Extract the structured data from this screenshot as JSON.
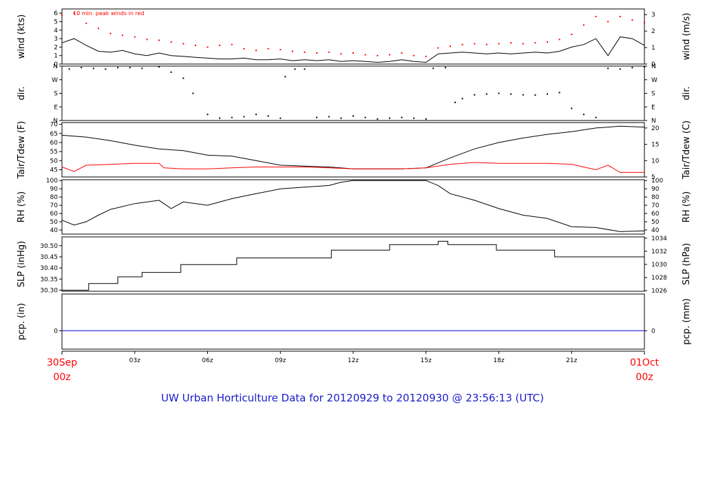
{
  "colors": {
    "ink": "#000000",
    "red": "#ff0000",
    "blue": "#1a1acc",
    "zero_line": "#0000cc"
  },
  "annotation": "10 min. peak winds in red",
  "footer_title": "UW Urban Horticulture Data for 20120929  to  20120930 @ 23:56:13  (UTC)",
  "time_axis": {
    "start_label": [
      "30Sep",
      "00z"
    ],
    "end_label": [
      "01Oct",
      "00z"
    ],
    "hour_labels": [
      "03z",
      "06z",
      "09z",
      "12z",
      "15z",
      "18z",
      "21z"
    ],
    "hours": [
      3,
      6,
      9,
      12,
      15,
      18,
      21
    ],
    "range_hours": [
      0,
      24
    ]
  },
  "panels": [
    {
      "id": "wind",
      "left_title": "wind (kts)",
      "right_title": "wind (m/s)",
      "left_ticks": [
        "0",
        "1",
        "2",
        "3",
        "4",
        "5",
        "6"
      ],
      "left_tick_values": [
        0,
        1,
        2,
        3,
        4,
        5,
        6
      ],
      "left_range": [
        0,
        6.5
      ],
      "right_ticks": [
        "0",
        "1",
        "2",
        "3"
      ],
      "right_tick_values": [
        0,
        1,
        2,
        3
      ]
    },
    {
      "id": "dir",
      "left_title": "dir.",
      "right_title": "dir.",
      "left_ticks": [
        "N",
        "E",
        "S",
        "W",
        "N"
      ],
      "left_tick_values": [
        0,
        90,
        180,
        270,
        360
      ],
      "left_range": [
        0,
        360
      ],
      "right_ticks": [
        "N",
        "E",
        "S",
        "W",
        "N"
      ],
      "right_tick_values": [
        0,
        90,
        180,
        270,
        360
      ]
    },
    {
      "id": "temp",
      "left_title": "Tair/Tdew (F)",
      "right_title": "Tair/Tdew (C)",
      "left_ticks": [
        "45",
        "50",
        "55",
        "60",
        "65",
        "70"
      ],
      "left_tick_values": [
        45,
        50,
        55,
        60,
        65,
        70
      ],
      "left_range": [
        41,
        71
      ],
      "right_ticks": [
        "5",
        "10",
        "15",
        "20"
      ],
      "right_tick_values": [
        5,
        10,
        15,
        20
      ]
    },
    {
      "id": "rh",
      "left_title": "RH (%)",
      "right_title": "RH (%)",
      "left_ticks": [
        "40",
        "50",
        "60",
        "70",
        "80",
        "90",
        "100"
      ],
      "left_tick_values": [
        40,
        50,
        60,
        70,
        80,
        90,
        100
      ],
      "left_range": [
        35,
        101
      ],
      "right_ticks": [
        "40",
        "50",
        "60",
        "70",
        "80",
        "90",
        "100"
      ],
      "right_tick_values": [
        40,
        50,
        60,
        70,
        80,
        90,
        100
      ]
    },
    {
      "id": "slp",
      "left_title": "SLP (inHg)",
      "right_title": "SLP (hPa)",
      "left_ticks": [
        "30.30",
        "30.35",
        "30.40",
        "30.45",
        "30.50"
      ],
      "left_tick_values": [
        30.3,
        30.35,
        30.4,
        30.45,
        30.5
      ],
      "left_range": [
        30.295,
        30.54
      ],
      "right_ticks": [
        "1026",
        "1028",
        "1030",
        "1032",
        "1034"
      ],
      "right_tick_values": [
        1026,
        1028,
        1030,
        1032,
        1034
      ]
    },
    {
      "id": "pcp",
      "left_title": "pcp. (in)",
      "right_title": "pcp. (mm)",
      "left_ticks": [
        "0"
      ],
      "left_tick_values": [
        0
      ],
      "left_range": [
        -0.5,
        1
      ],
      "right_ticks": [
        "0"
      ],
      "right_tick_values": [
        0
      ]
    }
  ],
  "chart_data": {
    "type": "line",
    "x_units": "hours UTC since 30Sep 00z",
    "series": [
      {
        "panel": "wind",
        "style": "line",
        "color": "#000000",
        "x": [
          0,
          0.5,
          1,
          1.5,
          2,
          2.5,
          3,
          3.5,
          4,
          4.5,
          5,
          5.5,
          6,
          6.5,
          7,
          7.5,
          8,
          8.5,
          9,
          9.5,
          10,
          10.5,
          11,
          11.5,
          12,
          12.5,
          13,
          13.5,
          14,
          14.5,
          15,
          15.5,
          16,
          16.5,
          17,
          17.5,
          18,
          18.5,
          19,
          19.5,
          20,
          20.5,
          21,
          21.5,
          22,
          22.5,
          23,
          23.5,
          24
        ],
        "values": [
          2.5,
          3.0,
          2.2,
          1.5,
          1.4,
          1.6,
          1.2,
          1.0,
          1.3,
          1.0,
          0.9,
          0.8,
          0.7,
          0.6,
          0.6,
          0.7,
          0.5,
          0.5,
          0.6,
          0.4,
          0.5,
          0.4,
          0.5,
          0.3,
          0.4,
          0.3,
          0.2,
          0.3,
          0.5,
          0.3,
          0.2,
          1.2,
          1.3,
          1.4,
          1.3,
          1.2,
          1.3,
          1.2,
          1.3,
          1.4,
          1.3,
          1.5,
          2.0,
          2.3,
          3.0,
          1.0,
          3.2,
          3.0,
          2.2
        ]
      },
      {
        "panel": "wind",
        "style": "points",
        "color": "#ff0000",
        "x": [
          0,
          0.5,
          1,
          1.5,
          2,
          2.5,
          3,
          3.5,
          4,
          4.5,
          5,
          5.5,
          6,
          6.5,
          7,
          7.5,
          8,
          8.5,
          9,
          9.5,
          10,
          10.5,
          11,
          11.5,
          12,
          12.5,
          13,
          13.5,
          14,
          14.5,
          15,
          15.5,
          16,
          16.5,
          17,
          17.5,
          18,
          18.5,
          19,
          19.5,
          20,
          20.5,
          21,
          21.5,
          22,
          22.5,
          23,
          23.5,
          24
        ],
        "values": [
          5.8,
          6.0,
          4.8,
          4.2,
          3.6,
          3.4,
          3.2,
          2.9,
          2.8,
          2.6,
          2.4,
          2.2,
          2.0,
          2.2,
          2.3,
          1.8,
          1.6,
          1.8,
          1.7,
          1.5,
          1.4,
          1.3,
          1.4,
          1.2,
          1.3,
          1.1,
          1.0,
          1.1,
          1.3,
          1.0,
          0.9,
          1.9,
          2.1,
          2.3,
          2.4,
          2.3,
          2.4,
          2.5,
          2.4,
          2.5,
          2.6,
          2.9,
          3.5,
          4.6,
          5.6,
          5.0,
          5.6,
          5.2,
          4.9
        ]
      },
      {
        "panel": "dir",
        "style": "points",
        "color": "#000000",
        "x": [
          0.3,
          0.8,
          1.3,
          1.8,
          2.3,
          2.8,
          3.3,
          4.0,
          4.5,
          5.0,
          5.4,
          6.0,
          6.5,
          7.0,
          7.5,
          8.0,
          8.5,
          9.0,
          9.2,
          9.6,
          10.0,
          10.5,
          11.0,
          11.5,
          12.0,
          12.5,
          13.0,
          13.5,
          14.0,
          14.5,
          15.0,
          15.3,
          15.8,
          16.2,
          16.5,
          17.0,
          17.5,
          18.0,
          18.5,
          19.0,
          19.5,
          20.0,
          20.5,
          21.0,
          21.5,
          22.0,
          22.5,
          23.0,
          23.5,
          24.0
        ],
        "values": [
          340,
          350,
          345,
          340,
          350,
          350,
          345,
          355,
          320,
          280,
          180,
          40,
          15,
          20,
          25,
          40,
          30,
          15,
          290,
          340,
          340,
          20,
          25,
          15,
          30,
          20,
          10,
          15,
          20,
          15,
          10,
          345,
          350,
          120,
          145,
          170,
          175,
          180,
          175,
          170,
          168,
          175,
          185,
          80,
          40,
          20,
          345,
          340,
          350,
          355
        ]
      },
      {
        "panel": "temp",
        "name": "Tair",
        "style": "line",
        "color": "#000000",
        "x": [
          0,
          1,
          2,
          3,
          4,
          5,
          6,
          7,
          8,
          9,
          10,
          11,
          12,
          13,
          14,
          15,
          16,
          17,
          18,
          19,
          20,
          21,
          22,
          23,
          24
        ],
        "values": [
          64,
          63,
          61,
          58.5,
          56.5,
          55.5,
          53,
          52.5,
          50,
          47.5,
          47,
          46.5,
          45.5,
          45.5,
          45.5,
          46,
          51.5,
          56.5,
          60,
          62.5,
          64.5,
          66,
          68,
          69,
          68.5
        ]
      },
      {
        "panel": "temp",
        "name": "Tdew",
        "style": "line",
        "color": "#ff0000",
        "x": [
          0,
          0.5,
          1,
          2,
          3,
          4,
          4.2,
          5,
          6,
          7,
          8,
          9,
          10,
          11,
          12,
          13,
          14,
          15,
          16,
          17,
          18,
          19,
          20,
          21,
          22,
          22.5,
          23,
          24
        ],
        "values": [
          46.5,
          44,
          47.5,
          48,
          48.5,
          48.5,
          46,
          45.5,
          45.5,
          46,
          46.5,
          46.5,
          46.5,
          46,
          45.5,
          45.5,
          45.5,
          46,
          48,
          49,
          48.5,
          48.5,
          48.5,
          48,
          45,
          47.5,
          43.5,
          43.5
        ]
      },
      {
        "panel": "rh",
        "style": "line",
        "color": "#000000",
        "x": [
          0,
          0.5,
          1,
          1.5,
          2,
          3,
          4,
          4.5,
          5,
          6,
          7,
          8,
          9,
          10,
          11,
          11.5,
          12,
          13,
          14,
          15,
          15.5,
          16,
          17,
          18,
          19,
          20,
          21,
          22,
          23,
          24
        ],
        "values": [
          52,
          46,
          50,
          58,
          65,
          72,
          76,
          66,
          74,
          70,
          78,
          84,
          90,
          92,
          94,
          98,
          100,
          100,
          100,
          100,
          94,
          84,
          76,
          66,
          58,
          54,
          44,
          43,
          38,
          39
        ]
      },
      {
        "panel": "slp",
        "style": "step",
        "color": "#000000",
        "x": [
          0,
          1.1,
          2.3,
          3.3,
          4.9,
          7.2,
          11.1,
          13.5,
          15.5,
          15.9,
          17.9,
          20.3,
          24
        ],
        "values": [
          30.3,
          30.33,
          30.36,
          30.38,
          30.415,
          30.445,
          30.48,
          30.505,
          30.52,
          30.505,
          30.48,
          30.45,
          30.45
        ]
      },
      {
        "panel": "pcp",
        "style": "line",
        "color": "#0000cc",
        "x": [
          0,
          24
        ],
        "values": [
          0,
          0
        ]
      }
    ]
  }
}
